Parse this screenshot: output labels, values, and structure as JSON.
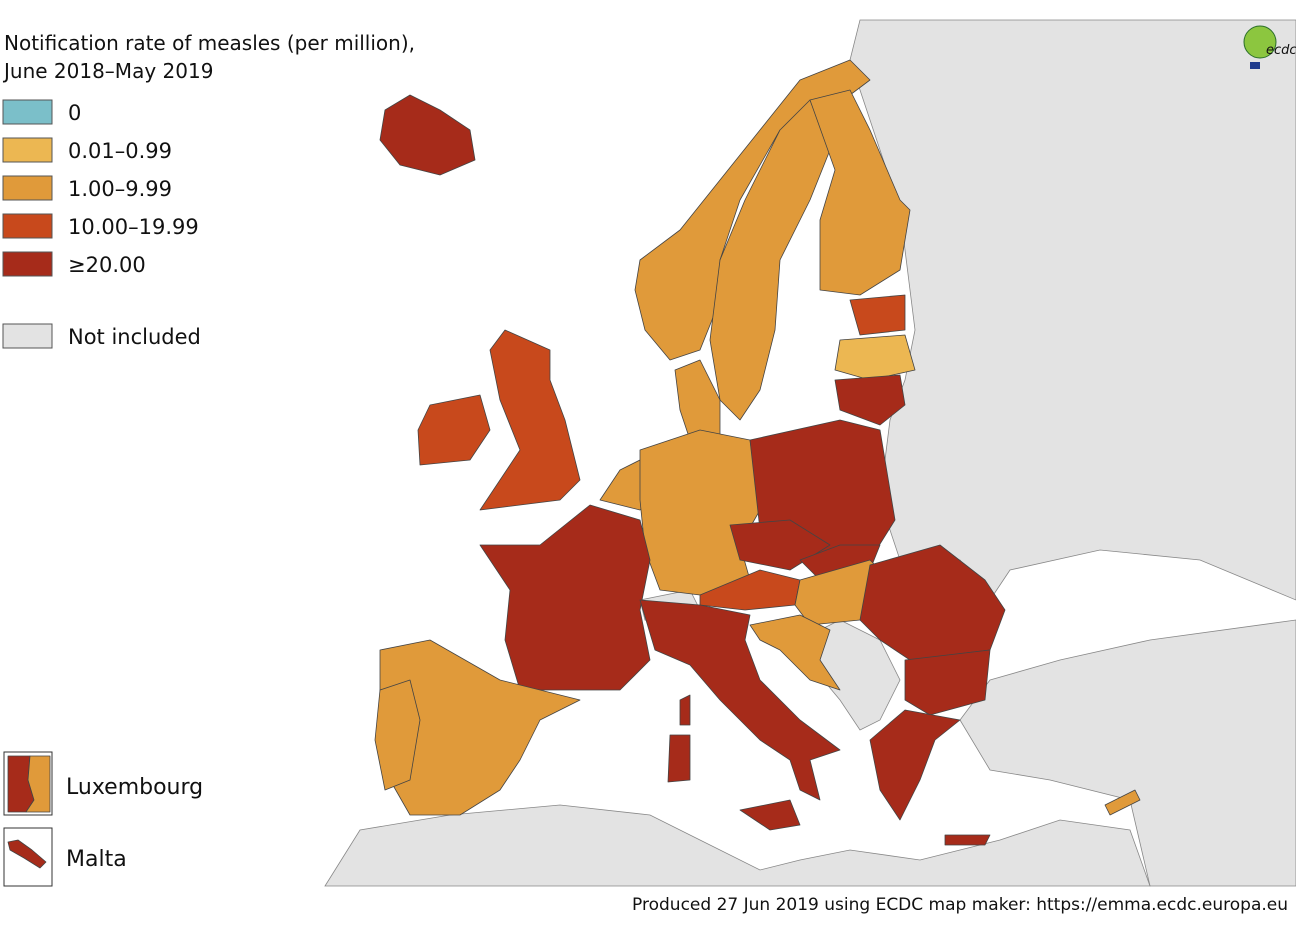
{
  "title": [
    "Notification rate of measles (per million),",
    "June 2018–May 2019"
  ],
  "legend": [
    {
      "label": "0",
      "color": "#7bbfc9"
    },
    {
      "label": "0.01–0.99",
      "color": "#ecb752"
    },
    {
      "label": "1.00–9.99",
      "color": "#e09a3a"
    },
    {
      "label": "10.00–19.99",
      "color": "#c8491c"
    },
    {
      "label": "≥20.00",
      "color": "#a62b1a"
    },
    {
      "label": "Not included",
      "color": "#e3e3e3"
    }
  ],
  "insets": [
    "Luxembourg",
    "Malta"
  ],
  "logo": "ecdc",
  "footer": "Produced 27 Jun 2019 using ECDC map maker: https://emma.ecdc.europa.eu"
}
